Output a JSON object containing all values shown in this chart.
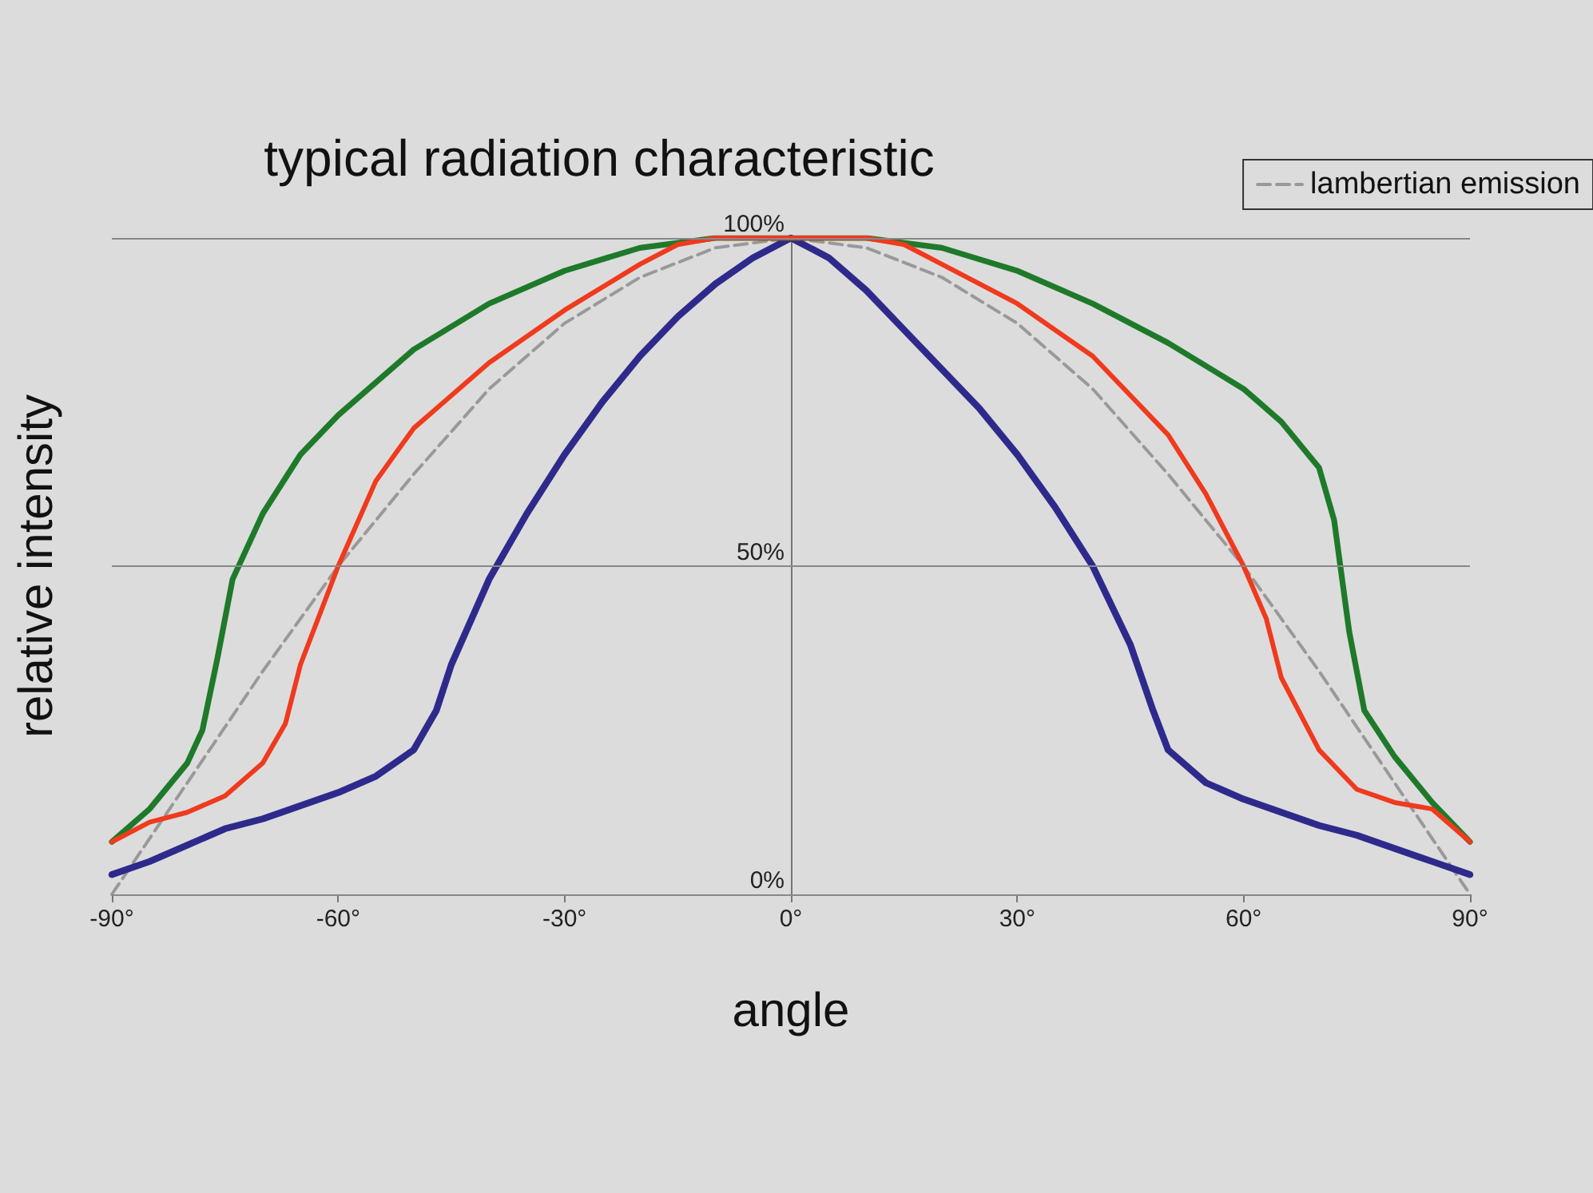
{
  "chart_data": {
    "type": "line",
    "title": "typical radiation characteristic",
    "xlabel": "angle",
    "ylabel": "relative intensity",
    "xlim": [
      -90,
      90
    ],
    "ylim": [
      0,
      100
    ],
    "xticks": [
      {
        "value": -90,
        "label": "-90°"
      },
      {
        "value": -60,
        "label": "-60°"
      },
      {
        "value": -30,
        "label": "-30°"
      },
      {
        "value": 0,
        "label": "0°"
      },
      {
        "value": 30,
        "label": "30°"
      },
      {
        "value": 60,
        "label": "60°"
      },
      {
        "value": 90,
        "label": "90°"
      }
    ],
    "yticks": [
      {
        "value": 0,
        "label": "0%"
      },
      {
        "value": 50,
        "label": "50%"
      },
      {
        "value": 100,
        "label": "100%"
      }
    ],
    "grid": "y",
    "legend": "top right",
    "marker": "none",
    "series": [
      {
        "color": "#2e2a8c",
        "x": [
          -90,
          -85,
          -80,
          -75,
          -70,
          -65,
          -60,
          -55,
          -50,
          -47,
          -45,
          -40,
          -35,
          -30,
          -25,
          -20,
          -15,
          -10,
          -5,
          0,
          5,
          10,
          15,
          20,
          25,
          30,
          35,
          40,
          45,
          48,
          50,
          55,
          60,
          65,
          70,
          75,
          80,
          85,
          90
        ],
        "values": [
          3,
          5,
          7.5,
          10,
          11.5,
          13.5,
          15.5,
          18,
          22,
          28,
          35,
          48,
          58,
          67,
          75,
          82,
          88,
          93,
          97,
          100,
          97,
          92,
          86,
          80,
          74,
          67,
          59,
          50,
          38,
          28,
          22,
          17,
          14.5,
          12.5,
          10.5,
          9,
          7,
          5,
          3
        ]
      },
      {
        "color": "#1e7a2a",
        "x": [
          -90,
          -85,
          -80,
          -78,
          -76,
          -74,
          -70,
          -65,
          -60,
          -50,
          -40,
          -30,
          -20,
          -10,
          0,
          10,
          20,
          30,
          40,
          50,
          60,
          65,
          70,
          72,
          74,
          76,
          80,
          85,
          90
        ],
        "values": [
          8,
          13,
          20,
          25,
          36,
          48,
          58,
          67,
          73,
          83,
          90,
          95,
          98.5,
          100,
          100,
          100,
          98.5,
          95,
          90,
          84,
          77,
          72,
          65,
          57,
          40,
          28,
          21,
          14,
          8
        ]
      },
      {
        "color": "#f03a1e",
        "x": [
          -90,
          -85,
          -80,
          -75,
          -70,
          -67,
          -65,
          -60,
          -55,
          -50,
          -40,
          -30,
          -20,
          -15,
          -10,
          0,
          10,
          15,
          20,
          30,
          40,
          50,
          55,
          60,
          63,
          65,
          70,
          75,
          80,
          85,
          90
        ],
        "values": [
          8,
          11,
          12.5,
          15,
          20,
          26,
          35,
          50,
          63,
          71,
          81,
          89,
          96,
          99,
          100,
          100,
          100,
          99,
          96,
          90,
          82,
          70,
          61,
          50,
          42,
          33,
          22,
          16,
          14,
          13,
          8
        ]
      },
      {
        "name": "lambertian emission",
        "color": "#999999",
        "line_style": "dashed",
        "x": [
          -90,
          -80,
          -70,
          -60,
          -50,
          -40,
          -30,
          -20,
          -10,
          0,
          10,
          20,
          30,
          40,
          50,
          60,
          70,
          80,
          90
        ],
        "values": [
          0,
          17,
          34,
          50,
          64,
          77,
          87,
          94,
          98.5,
          100,
          98.5,
          94,
          87,
          77,
          64,
          50,
          34,
          17,
          0
        ]
      }
    ]
  }
}
